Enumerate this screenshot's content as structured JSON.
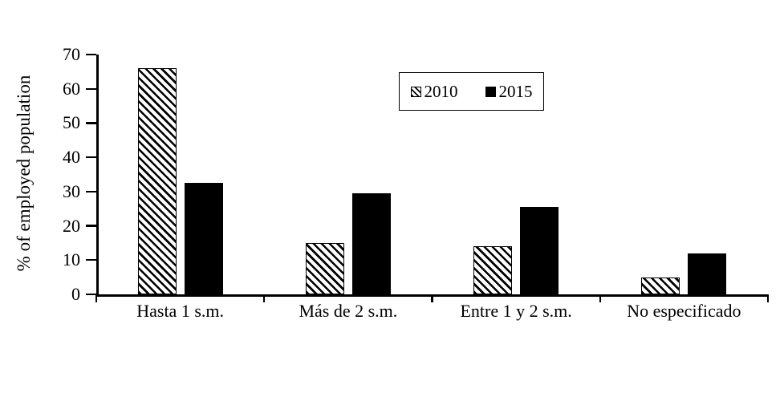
{
  "chart_data": {
    "type": "bar",
    "title": "",
    "xlabel": "",
    "ylabel": "% of employed population",
    "categories": [
      "Hasta 1 s.m.",
      "Más de 2 s.m.",
      "Entre 1 y 2 s.m.",
      "No especificado"
    ],
    "series": [
      {
        "name": "2010",
        "style": "hatched",
        "values": [
          66,
          15,
          14,
          5
        ]
      },
      {
        "name": "2015",
        "style": "solid",
        "values": [
          32.5,
          29.5,
          25.5,
          12
        ]
      }
    ],
    "ylim": [
      0,
      70
    ],
    "yticks": [
      0,
      10,
      20,
      30,
      40,
      50,
      60,
      70
    ],
    "grid": false,
    "legend_position": "top-center",
    "colors": {
      "bar_fill": "#000000",
      "background": "#ffffff",
      "axis": "#000000",
      "text": "#000000"
    }
  }
}
